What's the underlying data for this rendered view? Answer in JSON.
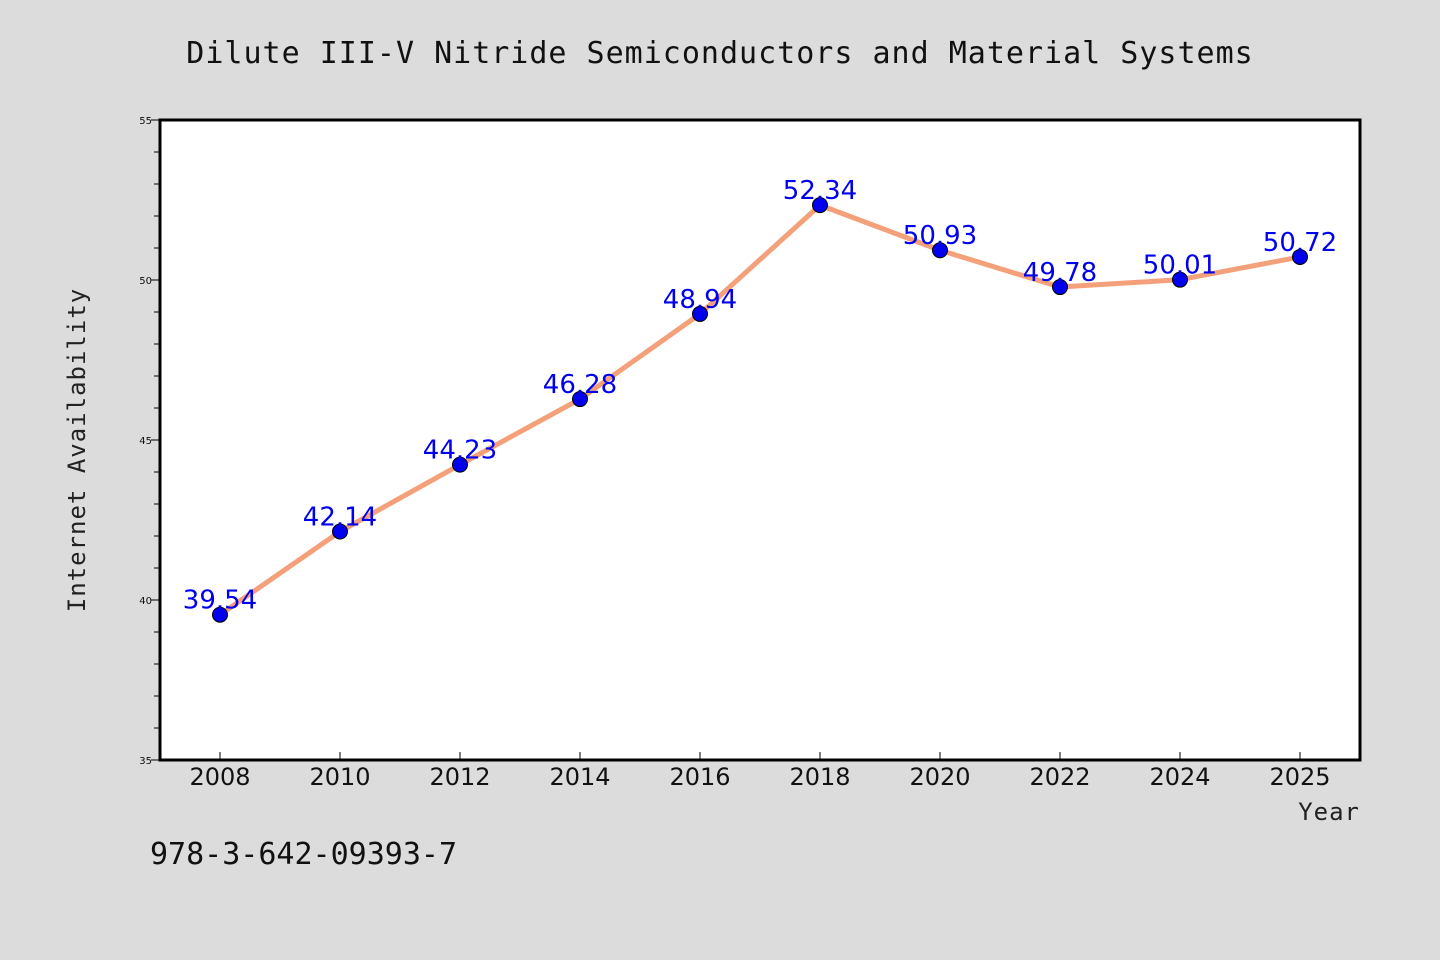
{
  "chart_data": {
    "type": "line",
    "title": "Dilute III-V Nitride Semiconductors and Material Systems",
    "xlabel": "Year",
    "ylabel": "Internet Availability",
    "categories": [
      "2008",
      "2010",
      "2012",
      "2014",
      "2016",
      "2018",
      "2020",
      "2022",
      "2024",
      "2025"
    ],
    "series": [
      {
        "values": [
          39.54,
          42.14,
          44.23,
          46.28,
          48.94,
          52.34,
          50.93,
          49.78,
          50.01,
          50.72
        ],
        "data_labels": [
          "39.54",
          "42.14",
          "44.23",
          "46.28",
          "48.94",
          "52.34",
          "50.93",
          "49.78",
          "50.01",
          "50.72"
        ],
        "line_color": "#f4a07a",
        "marker_color": "#0000ee"
      }
    ],
    "ylim": [
      35,
      55
    ],
    "yticks": [
      "35",
      "40",
      "45",
      "50",
      "55"
    ],
    "grid": false,
    "legend": "none"
  },
  "footer": {
    "isbn": "978-3-642-09393-7"
  },
  "colors": {
    "background": "#dcdcdc",
    "plot_area": "#ffffff",
    "data_label": "#0000ee"
  }
}
